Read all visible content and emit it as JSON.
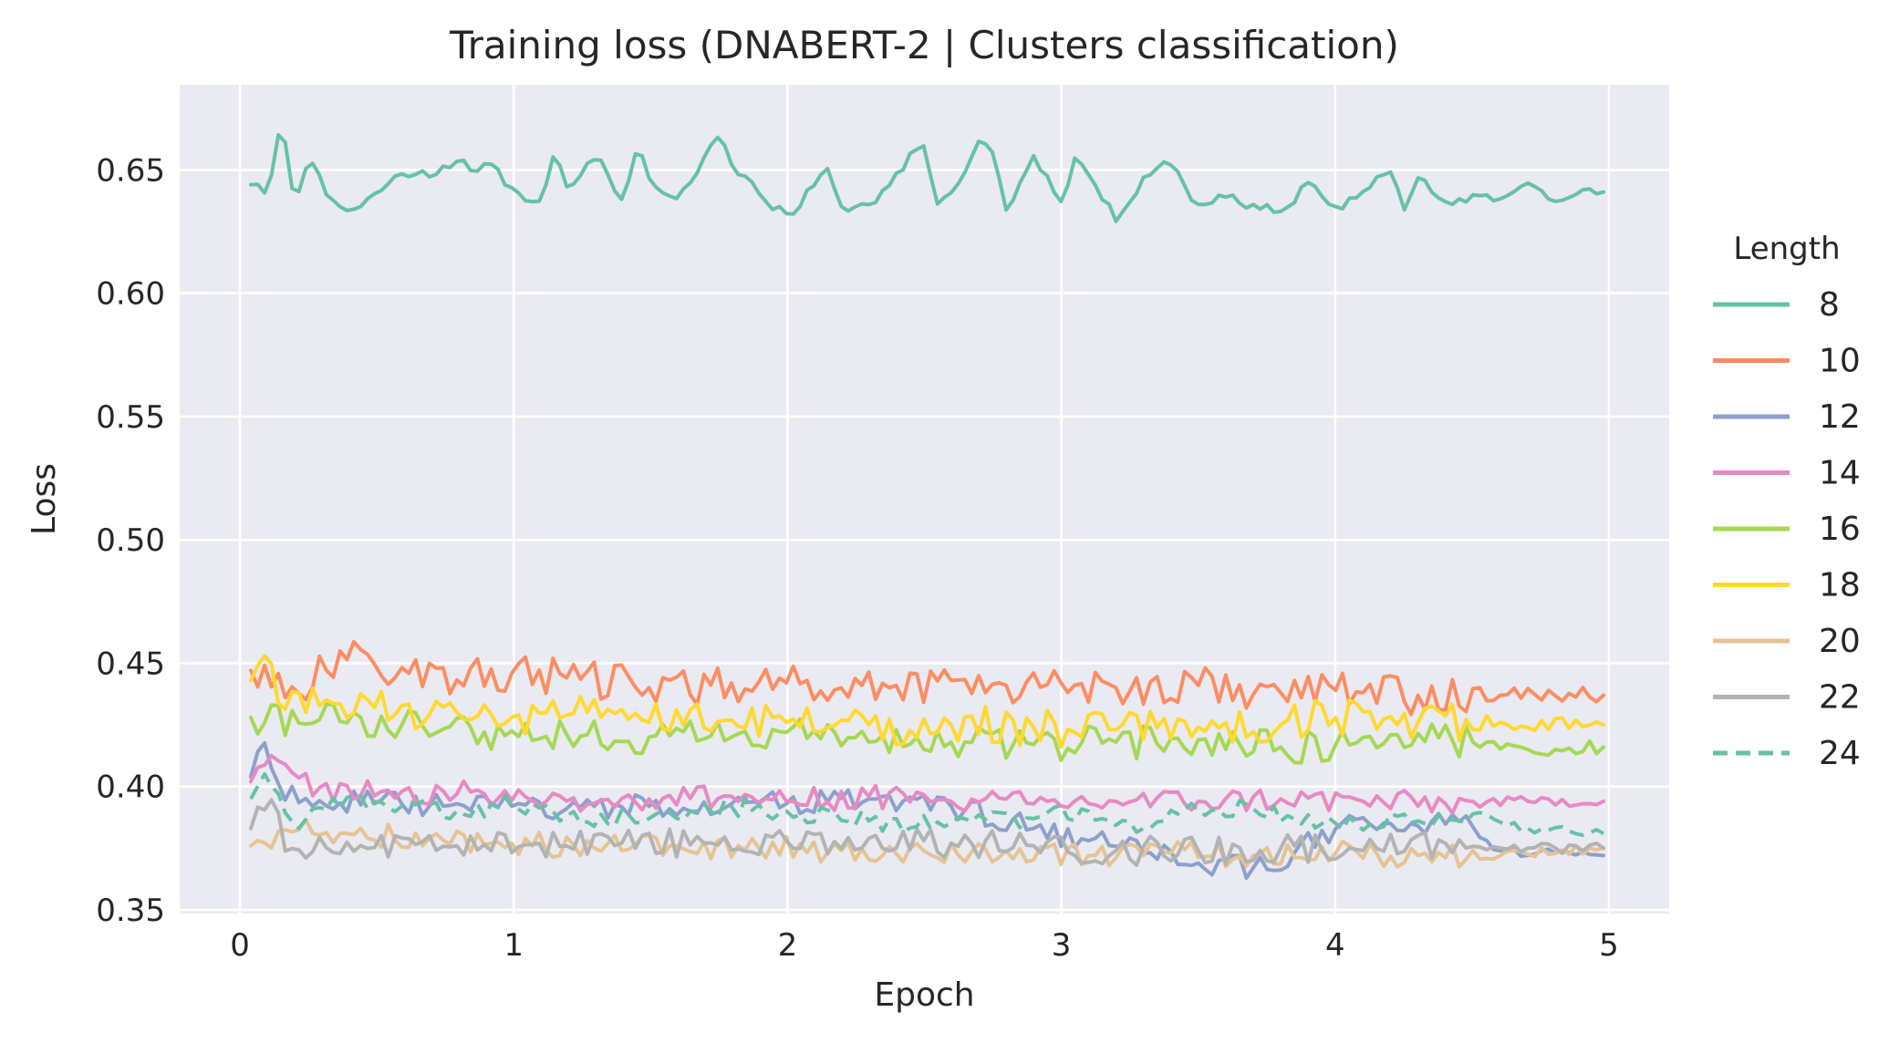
{
  "chart_data": {
    "type": "line",
    "title": "Training loss (DNABERT-2 | Clusters classification)",
    "xlabel": "Epoch",
    "ylabel": "Loss",
    "xlim": [
      -0.22,
      5.22
    ],
    "ylim": [
      0.3485,
      0.6845
    ],
    "xticks": [
      0,
      1,
      2,
      3,
      4,
      5
    ],
    "xtick_labels": [
      "0",
      "1",
      "2",
      "3",
      "4",
      "5"
    ],
    "yticks": [
      0.35,
      0.4,
      0.45,
      0.5,
      0.55,
      0.6,
      0.65
    ],
    "ytick_labels": [
      "0.35",
      "0.40",
      "0.45",
      "0.50",
      "0.55",
      "0.60",
      "0.65"
    ],
    "grid": true,
    "background": "#eaeaf2",
    "legend": {
      "title": "Length",
      "placement": "right-outside"
    },
    "x_start": 0.04,
    "x_end": 4.98,
    "series": [
      {
        "name": "8",
        "color": "#66c2a5",
        "dash": "solid",
        "anchors": [
          [
            0.04,
            0.644
          ],
          [
            0.1,
            0.64
          ],
          [
            0.15,
            0.67
          ],
          [
            0.2,
            0.636
          ],
          [
            0.25,
            0.654
          ],
          [
            0.35,
            0.636
          ],
          [
            0.4,
            0.633
          ],
          [
            0.5,
            0.641
          ],
          [
            0.6,
            0.649
          ],
          [
            0.7,
            0.647
          ],
          [
            0.8,
            0.654
          ],
          [
            0.85,
            0.649
          ],
          [
            0.9,
            0.653
          ],
          [
            1.0,
            0.642
          ],
          [
            1.1,
            0.637
          ],
          [
            1.15,
            0.658
          ],
          [
            1.2,
            0.641
          ],
          [
            1.3,
            0.655
          ],
          [
            1.4,
            0.637
          ],
          [
            1.45,
            0.659
          ],
          [
            1.5,
            0.645
          ],
          [
            1.6,
            0.638
          ],
          [
            1.75,
            0.664
          ],
          [
            1.8,
            0.651
          ],
          [
            1.9,
            0.64
          ],
          [
            2.0,
            0.632
          ],
          [
            2.1,
            0.644
          ],
          [
            2.15,
            0.651
          ],
          [
            2.2,
            0.634
          ],
          [
            2.3,
            0.636
          ],
          [
            2.4,
            0.649
          ],
          [
            2.5,
            0.66
          ],
          [
            2.55,
            0.635
          ],
          [
            2.6,
            0.641
          ],
          [
            2.7,
            0.662
          ],
          [
            2.75,
            0.657
          ],
          [
            2.8,
            0.633
          ],
          [
            2.9,
            0.656
          ],
          [
            3.0,
            0.637
          ],
          [
            3.05,
            0.655
          ],
          [
            3.1,
            0.648
          ],
          [
            3.2,
            0.629
          ],
          [
            3.3,
            0.647
          ],
          [
            3.4,
            0.652
          ],
          [
            3.5,
            0.636
          ],
          [
            3.6,
            0.639
          ],
          [
            3.7,
            0.636
          ],
          [
            3.8,
            0.633
          ],
          [
            3.9,
            0.645
          ],
          [
            4.0,
            0.635
          ],
          [
            4.1,
            0.641
          ],
          [
            4.2,
            0.65
          ],
          [
            4.25,
            0.633
          ],
          [
            4.3,
            0.647
          ],
          [
            4.4,
            0.637
          ],
          [
            4.5,
            0.64
          ],
          [
            4.6,
            0.638
          ],
          [
            4.7,
            0.645
          ],
          [
            4.8,
            0.637
          ],
          [
            4.9,
            0.642
          ],
          [
            4.98,
            0.641
          ]
        ],
        "jitter": 0.0025
      },
      {
        "name": "10",
        "color": "#fc8d62",
        "dash": "solid",
        "anchors": [
          [
            0.04,
            0.447
          ],
          [
            0.2,
            0.44
          ],
          [
            0.4,
            0.452
          ],
          [
            0.6,
            0.448
          ],
          [
            0.8,
            0.443
          ],
          [
            1.0,
            0.446
          ],
          [
            1.2,
            0.444
          ],
          [
            1.5,
            0.44
          ],
          [
            1.8,
            0.442
          ],
          [
            2.0,
            0.442
          ],
          [
            2.2,
            0.44
          ],
          [
            2.4,
            0.441
          ],
          [
            2.6,
            0.443
          ],
          [
            2.8,
            0.441
          ],
          [
            3.0,
            0.442
          ],
          [
            3.2,
            0.44
          ],
          [
            3.5,
            0.441
          ],
          [
            3.8,
            0.438
          ],
          [
            4.0,
            0.439
          ],
          [
            4.3,
            0.437
          ],
          [
            4.6,
            0.437
          ],
          [
            4.98,
            0.437
          ]
        ],
        "jitter": 0.008
      },
      {
        "name": "12",
        "color": "#8da0cb",
        "dash": "solid",
        "anchors": [
          [
            0.04,
            0.404
          ],
          [
            0.08,
            0.421
          ],
          [
            0.15,
            0.398
          ],
          [
            0.3,
            0.394
          ],
          [
            0.5,
            0.393
          ],
          [
            0.7,
            0.392
          ],
          [
            1.0,
            0.392
          ],
          [
            1.2,
            0.391
          ],
          [
            1.5,
            0.392
          ],
          [
            1.8,
            0.393
          ],
          [
            2.0,
            0.393
          ],
          [
            2.3,
            0.395
          ],
          [
            2.6,
            0.392
          ],
          [
            2.9,
            0.383
          ],
          [
            3.1,
            0.378
          ],
          [
            3.3,
            0.373
          ],
          [
            3.5,
            0.369
          ],
          [
            3.7,
            0.367
          ],
          [
            3.85,
            0.373
          ],
          [
            4.0,
            0.383
          ],
          [
            4.2,
            0.385
          ],
          [
            4.5,
            0.384
          ],
          [
            4.6,
            0.374
          ],
          [
            4.8,
            0.373
          ],
          [
            4.98,
            0.372
          ]
        ],
        "jitter": 0.005
      },
      {
        "name": "14",
        "color": "#e78ac3",
        "dash": "solid",
        "anchors": [
          [
            0.04,
            0.402
          ],
          [
            0.1,
            0.41
          ],
          [
            0.3,
            0.399
          ],
          [
            0.6,
            0.398
          ],
          [
            0.9,
            0.397
          ],
          [
            1.2,
            0.394
          ],
          [
            1.5,
            0.395
          ],
          [
            1.8,
            0.396
          ],
          [
            2.0,
            0.394
          ],
          [
            2.3,
            0.396
          ],
          [
            2.6,
            0.394
          ],
          [
            2.9,
            0.393
          ],
          [
            3.2,
            0.394
          ],
          [
            3.5,
            0.394
          ],
          [
            3.8,
            0.395
          ],
          [
            4.1,
            0.394
          ],
          [
            4.4,
            0.393
          ],
          [
            4.7,
            0.394
          ],
          [
            4.98,
            0.394
          ]
        ],
        "jitter": 0.005
      },
      {
        "name": "16",
        "color": "#a6d854",
        "dash": "solid",
        "anchors": [
          [
            0.04,
            0.428
          ],
          [
            0.3,
            0.427
          ],
          [
            0.6,
            0.425
          ],
          [
            0.9,
            0.422
          ],
          [
            1.2,
            0.421
          ],
          [
            1.5,
            0.42
          ],
          [
            1.8,
            0.42
          ],
          [
            2.0,
            0.422
          ],
          [
            2.3,
            0.418
          ],
          [
            2.6,
            0.418
          ],
          [
            2.9,
            0.417
          ],
          [
            3.2,
            0.418
          ],
          [
            3.5,
            0.419
          ],
          [
            3.8,
            0.416
          ],
          [
            4.0,
            0.417
          ],
          [
            4.2,
            0.421
          ],
          [
            4.5,
            0.418
          ],
          [
            4.7,
            0.415
          ],
          [
            4.98,
            0.416
          ]
        ],
        "jitter": 0.007
      },
      {
        "name": "18",
        "color": "#ffd92f",
        "dash": "solid",
        "anchors": [
          [
            0.04,
            0.443
          ],
          [
            0.08,
            0.457
          ],
          [
            0.15,
            0.43
          ],
          [
            0.3,
            0.433
          ],
          [
            0.5,
            0.432
          ],
          [
            0.8,
            0.43
          ],
          [
            1.0,
            0.428
          ],
          [
            1.2,
            0.429
          ],
          [
            1.5,
            0.426
          ],
          [
            1.8,
            0.427
          ],
          [
            2.0,
            0.426
          ],
          [
            2.3,
            0.425
          ],
          [
            2.6,
            0.425
          ],
          [
            2.9,
            0.424
          ],
          [
            3.2,
            0.423
          ],
          [
            3.5,
            0.424
          ],
          [
            3.8,
            0.425
          ],
          [
            4.0,
            0.428
          ],
          [
            4.3,
            0.426
          ],
          [
            4.6,
            0.426
          ],
          [
            4.98,
            0.425
          ]
        ],
        "jitter": 0.008
      },
      {
        "name": "20",
        "color": "#e5c494",
        "dash": "solid",
        "anchors": [
          [
            0.04,
            0.376
          ],
          [
            0.2,
            0.382
          ],
          [
            0.4,
            0.381
          ],
          [
            0.7,
            0.379
          ],
          [
            1.0,
            0.377
          ],
          [
            1.3,
            0.375
          ],
          [
            1.6,
            0.376
          ],
          [
            1.9,
            0.375
          ],
          [
            2.2,
            0.374
          ],
          [
            2.5,
            0.374
          ],
          [
            2.8,
            0.374
          ],
          [
            3.1,
            0.372
          ],
          [
            3.4,
            0.373
          ],
          [
            3.7,
            0.372
          ],
          [
            4.0,
            0.373
          ],
          [
            4.3,
            0.372
          ],
          [
            4.6,
            0.372
          ],
          [
            4.98,
            0.375
          ]
        ],
        "jitter": 0.005
      },
      {
        "name": "22",
        "color": "#b3b3b3",
        "dash": "solid",
        "anchors": [
          [
            0.04,
            0.383
          ],
          [
            0.1,
            0.392
          ],
          [
            0.2,
            0.373
          ],
          [
            0.3,
            0.38
          ],
          [
            0.5,
            0.375
          ],
          [
            0.8,
            0.376
          ],
          [
            1.1,
            0.377
          ],
          [
            1.4,
            0.377
          ],
          [
            1.7,
            0.377
          ],
          [
            2.0,
            0.378
          ],
          [
            2.3,
            0.379
          ],
          [
            2.6,
            0.377
          ],
          [
            2.9,
            0.376
          ],
          [
            3.2,
            0.374
          ],
          [
            3.5,
            0.374
          ],
          [
            3.8,
            0.375
          ],
          [
            4.1,
            0.374
          ],
          [
            4.4,
            0.377
          ],
          [
            4.7,
            0.375
          ],
          [
            4.98,
            0.375
          ]
        ],
        "jitter": 0.006
      },
      {
        "name": "24",
        "color": "#66c2a5",
        "dash": "dashed",
        "anchors": [
          [
            0.04,
            0.395
          ],
          [
            0.08,
            0.407
          ],
          [
            0.2,
            0.384
          ],
          [
            0.4,
            0.396
          ],
          [
            0.6,
            0.392
          ],
          [
            0.8,
            0.39
          ],
          [
            1.0,
            0.393
          ],
          [
            1.2,
            0.388
          ],
          [
            1.5,
            0.387
          ],
          [
            1.8,
            0.392
          ],
          [
            2.0,
            0.39
          ],
          [
            2.3,
            0.386
          ],
          [
            2.6,
            0.385
          ],
          [
            2.9,
            0.387
          ],
          [
            3.1,
            0.39
          ],
          [
            3.3,
            0.383
          ],
          [
            3.5,
            0.39
          ],
          [
            3.7,
            0.391
          ],
          [
            4.0,
            0.385
          ],
          [
            4.3,
            0.386
          ],
          [
            4.5,
            0.389
          ],
          [
            4.7,
            0.383
          ],
          [
            4.85,
            0.382
          ],
          [
            4.98,
            0.381
          ]
        ],
        "jitter": 0.004
      }
    ]
  }
}
